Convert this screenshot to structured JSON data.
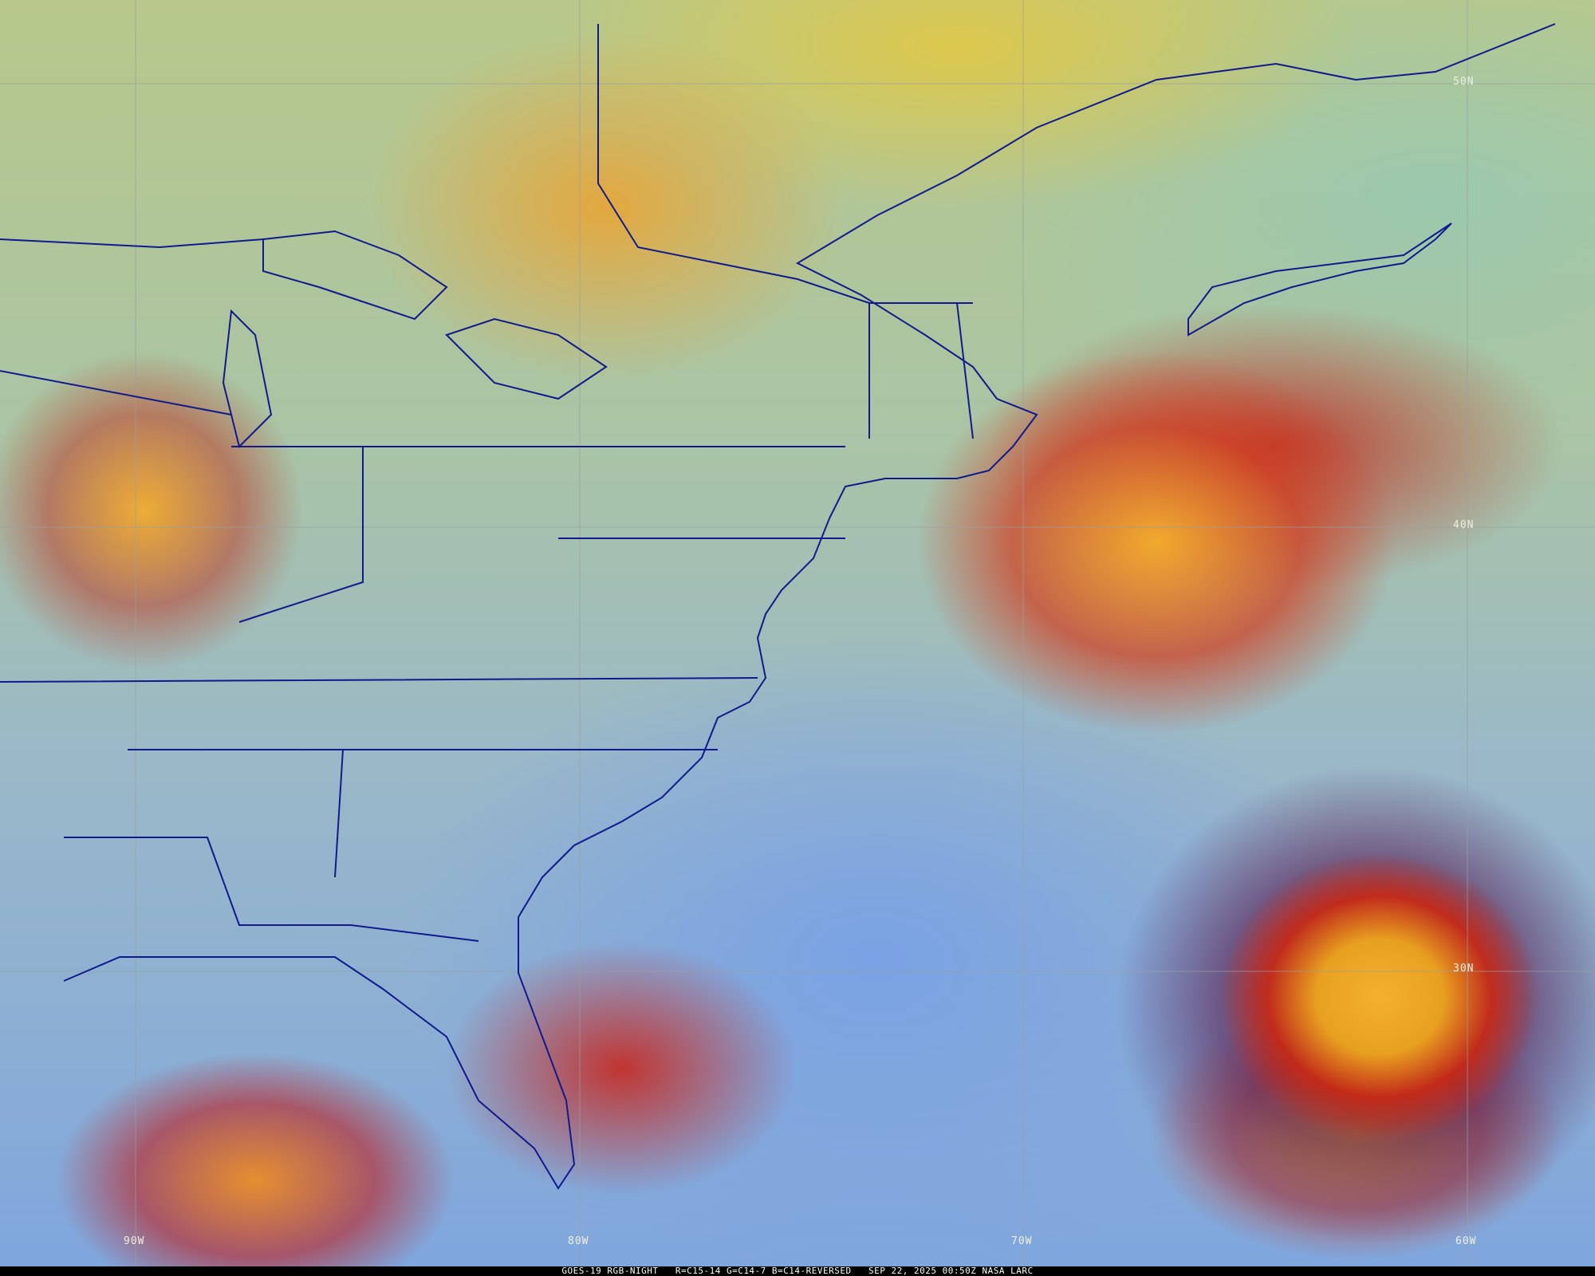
{
  "caption": {
    "satellite": "GOES-19 RGB-NIGHT",
    "channels": "R=C15-14 G=C14-7 B=C14-REVERSED",
    "datetime": "SEP 22, 2025 00:50Z",
    "credit": "NASA LARC"
  },
  "grid": {
    "latitudes": [
      {
        "label": "50N"
      },
      {
        "label": "40N"
      },
      {
        "label": "30N"
      }
    ],
    "longitudes": [
      {
        "label": "90W"
      },
      {
        "label": "80W"
      },
      {
        "label": "70W"
      },
      {
        "label": "60W"
      }
    ]
  },
  "colors": {
    "boundaries": "#101a8c",
    "gridlines": "#9aa0a0",
    "caption_bg": "#000000",
    "caption_text": "#ffffff"
  }
}
